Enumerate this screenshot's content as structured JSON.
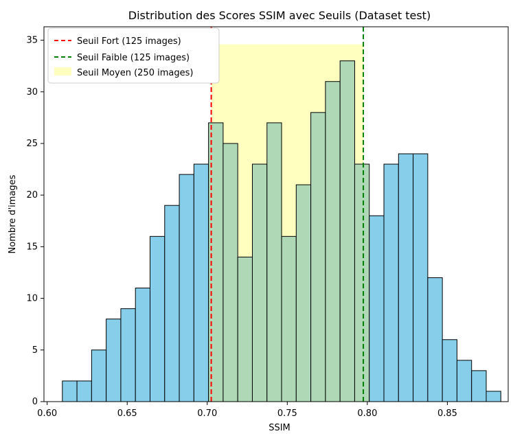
{
  "chart_data": {
    "type": "bar",
    "title": "Distribution des Scores SSIM avec Seuils (Dataset test)",
    "xlabel": "SSIM",
    "ylabel": "Nombre d'images",
    "xlim": [
      0.598,
      0.888
    ],
    "ylim": [
      0,
      36.3
    ],
    "xticks": [
      0.6,
      0.65,
      0.7,
      0.75,
      0.8,
      0.85
    ],
    "xtick_labels": [
      "0.60",
      "0.65",
      "0.70",
      "0.75",
      "0.80",
      "0.85"
    ],
    "yticks": [
      0,
      5,
      10,
      15,
      20,
      25,
      30,
      35
    ],
    "ytick_labels": [
      "0",
      "5",
      "10",
      "15",
      "20",
      "25",
      "30",
      "35"
    ],
    "grid": false,
    "legend_position": "top-left",
    "bin_start": 0.6095,
    "bin_width": 0.00913,
    "values": [
      2,
      2,
      5,
      8,
      9,
      11,
      16,
      19,
      22,
      23,
      27,
      25,
      14,
      23,
      27,
      16,
      21,
      28,
      31,
      33,
      23,
      18,
      23,
      24,
      24,
      12,
      6,
      4,
      3,
      1
    ],
    "colors": {
      "bar_default": "#87ceeb",
      "bar_middle": "#aed8b6",
      "highlight_band": "#ffffc0",
      "strong_line": "#ff0000",
      "weak_line": "#008000",
      "edge": "#000000"
    },
    "thresholds": {
      "strong": {
        "value": 0.7025,
        "label": "Seuil Fort (125 images)"
      },
      "weak": {
        "value": 0.7975,
        "label": "Seuil Faible (125 images)"
      },
      "middle_band": {
        "x0": 0.7025,
        "x1": 0.7975,
        "y_top": 34.6,
        "label": "Seuil Moyen (250 images)"
      }
    }
  }
}
